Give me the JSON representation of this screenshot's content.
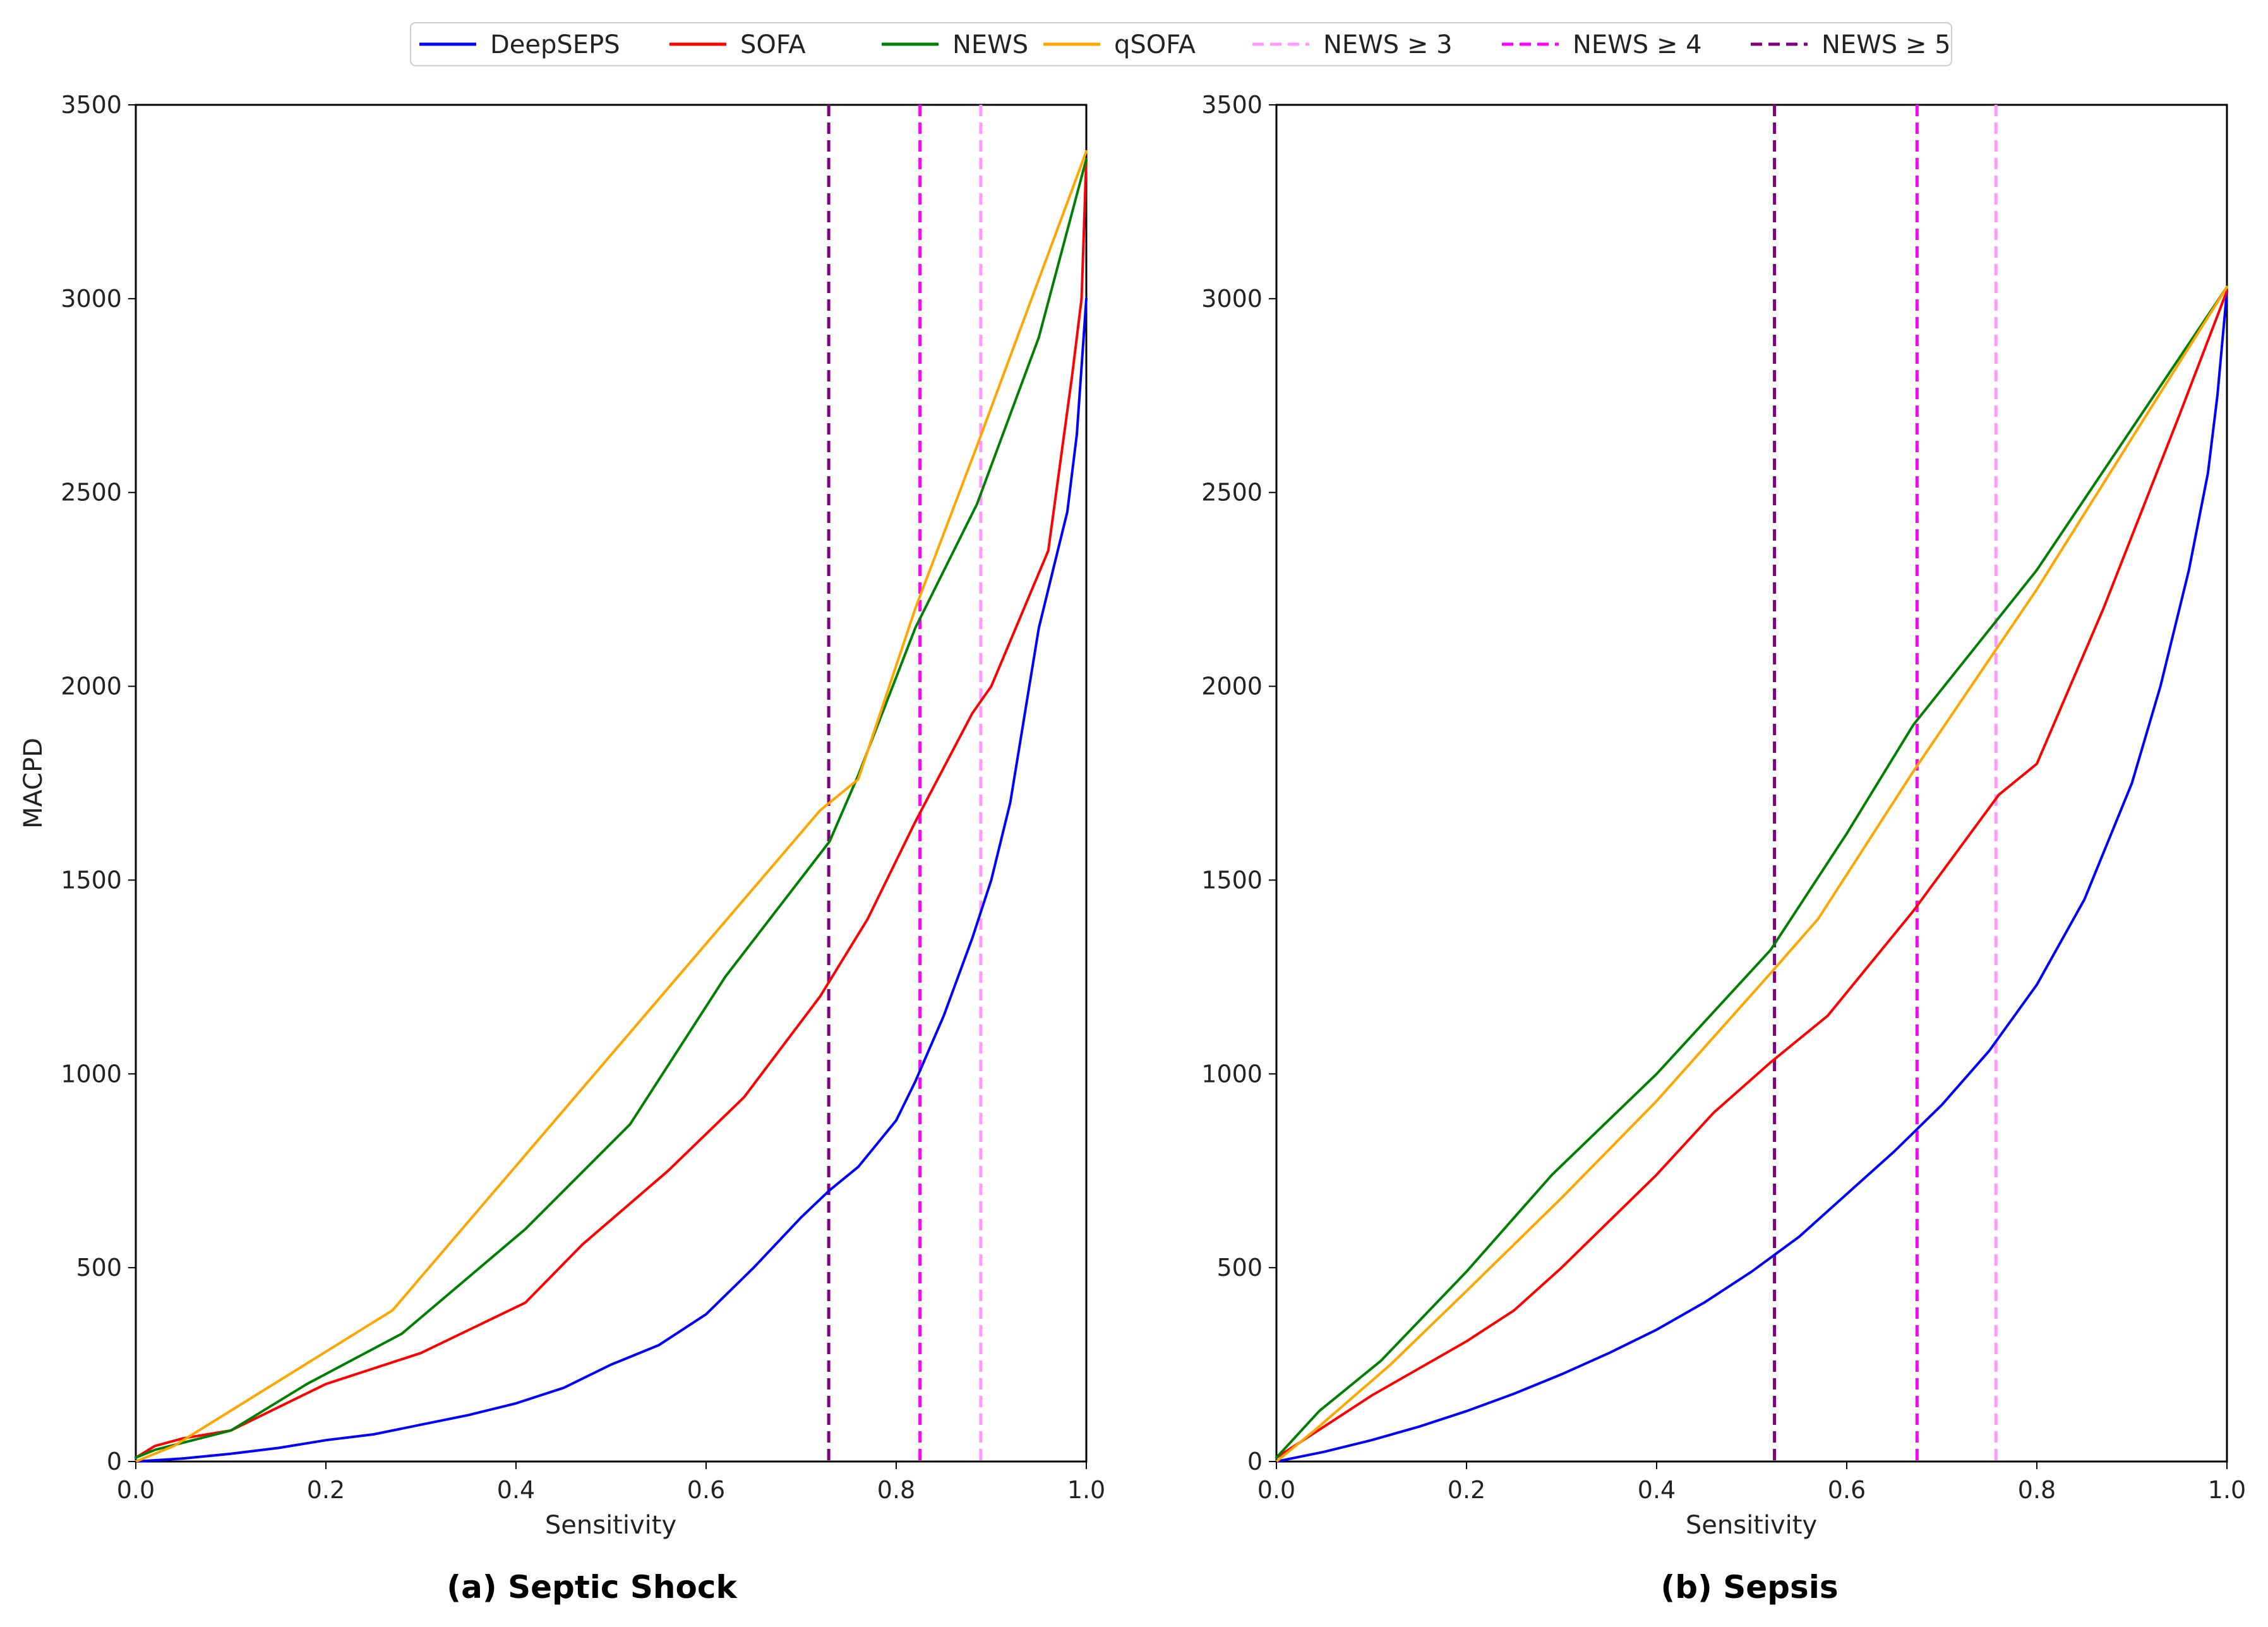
{
  "legend": [
    {
      "name": "DeepSEPS",
      "color": "#0000ff",
      "dash": "solid"
    },
    {
      "name": "SOFA",
      "color": "#ff0000",
      "dash": "solid"
    },
    {
      "name": "NEWS",
      "color": "#008000",
      "dash": "solid"
    },
    {
      "name": "qSOFA",
      "color": "#ffa500",
      "dash": "solid"
    },
    {
      "name": "NEWS ≥ 3",
      "color": "#ff99ff",
      "dash": "dashed"
    },
    {
      "name": "NEWS ≥ 4",
      "color": "#ff00ff",
      "dash": "dashed"
    },
    {
      "name": "NEWS ≥ 5",
      "color": "#800080",
      "dash": "dashed"
    }
  ],
  "chart_data": [
    {
      "type": "line",
      "caption": "(a) Septic Shock",
      "xlabel": "Sensitivity",
      "ylabel": "MACPD",
      "xlim": [
        0.0,
        1.0
      ],
      "ylim": [
        0,
        3500
      ],
      "xticks": [
        "0.0",
        "0.2",
        "0.4",
        "0.6",
        "0.8",
        "1.0"
      ],
      "yticks": [
        "0",
        "500",
        "1000",
        "1500",
        "2000",
        "2500",
        "3000",
        "3500"
      ],
      "series": [
        {
          "name": "DeepSEPS",
          "color": "#0000ff",
          "x": [
            0.0,
            0.05,
            0.1,
            0.15,
            0.2,
            0.25,
            0.3,
            0.35,
            0.4,
            0.45,
            0.5,
            0.55,
            0.6,
            0.65,
            0.7,
            0.73,
            0.76,
            0.8,
            0.82,
            0.85,
            0.88,
            0.9,
            0.92,
            0.94,
            0.95,
            0.96,
            0.97,
            0.98,
            0.99,
            1.0
          ],
          "y": [
            0,
            8,
            20,
            35,
            55,
            70,
            95,
            120,
            150,
            190,
            250,
            300,
            380,
            500,
            630,
            700,
            760,
            880,
            980,
            1150,
            1350,
            1500,
            1700,
            2000,
            2150,
            2250,
            2350,
            2450,
            2650,
            3000
          ]
        },
        {
          "name": "SOFA",
          "color": "#ff0000",
          "x": [
            0.0,
            0.02,
            0.05,
            0.1,
            0.15,
            0.2,
            0.3,
            0.41,
            0.47,
            0.56,
            0.64,
            0.72,
            0.77,
            0.82,
            0.88,
            0.9,
            0.96,
            0.985,
            0.995,
            1.0
          ],
          "y": [
            10,
            40,
            60,
            80,
            140,
            200,
            280,
            410,
            560,
            750,
            940,
            1200,
            1400,
            1650,
            1930,
            2000,
            2350,
            2800,
            3000,
            3360
          ]
        },
        {
          "name": "NEWS",
          "color": "#008000",
          "x": [
            0.0,
            0.02,
            0.1,
            0.18,
            0.28,
            0.41,
            0.52,
            0.62,
            0.73,
            0.76,
            0.82,
            0.885,
            0.95,
            1.0
          ],
          "y": [
            10,
            30,
            80,
            200,
            330,
            600,
            870,
            1250,
            1600,
            1770,
            2150,
            2470,
            2900,
            3360
          ]
        },
        {
          "name": "qSOFA",
          "color": "#ffa500",
          "x": [
            0.0,
            0.04,
            0.27,
            0.72,
            0.76,
            0.82,
            0.885,
            1.0
          ],
          "y": [
            0,
            40,
            390,
            1680,
            1760,
            2200,
            2620,
            3380
          ]
        }
      ],
      "thresholds": [
        {
          "name": "NEWS ≥ 3",
          "x": 0.889,
          "color": "#ff99ff"
        },
        {
          "name": "NEWS ≥ 4",
          "x": 0.825,
          "color": "#ff00ff"
        },
        {
          "name": "NEWS ≥ 5",
          "x": 0.729,
          "color": "#800080"
        }
      ]
    },
    {
      "type": "line",
      "caption": "(b) Sepsis",
      "xlabel": "Sensitivity",
      "ylabel": "",
      "xlim": [
        0.0,
        1.0
      ],
      "ylim": [
        0,
        3500
      ],
      "xticks": [
        "0.0",
        "0.2",
        "0.4",
        "0.6",
        "0.8",
        "1.0"
      ],
      "yticks": [
        "0",
        "500",
        "1000",
        "1500",
        "2000",
        "2500",
        "3000",
        "3500"
      ],
      "series": [
        {
          "name": "DeepSEPS",
          "color": "#0000ff",
          "x": [
            0.0,
            0.05,
            0.1,
            0.15,
            0.2,
            0.25,
            0.3,
            0.35,
            0.4,
            0.45,
            0.5,
            0.55,
            0.6,
            0.65,
            0.7,
            0.75,
            0.8,
            0.85,
            0.9,
            0.93,
            0.96,
            0.98,
            0.99,
            1.0
          ],
          "y": [
            0,
            25,
            55,
            90,
            130,
            175,
            225,
            280,
            340,
            410,
            490,
            580,
            690,
            800,
            920,
            1060,
            1230,
            1450,
            1750,
            2000,
            2300,
            2550,
            2750,
            3020
          ]
        },
        {
          "name": "SOFA",
          "color": "#ff0000",
          "x": [
            0.0,
            0.05,
            0.1,
            0.15,
            0.2,
            0.25,
            0.3,
            0.4,
            0.46,
            0.52,
            0.58,
            0.67,
            0.76,
            0.8,
            0.87,
            0.95,
            1.0
          ],
          "y": [
            10,
            90,
            170,
            240,
            310,
            390,
            500,
            740,
            900,
            1030,
            1150,
            1420,
            1720,
            1800,
            2200,
            2700,
            3020
          ]
        },
        {
          "name": "NEWS",
          "color": "#008000",
          "x": [
            0.0,
            0.045,
            0.11,
            0.2,
            0.29,
            0.4,
            0.52,
            0.6,
            0.67,
            0.8,
            1.0
          ],
          "y": [
            10,
            130,
            260,
            490,
            740,
            1000,
            1320,
            1620,
            1900,
            2300,
            3030
          ]
        },
        {
          "name": "qSOFA",
          "color": "#ffa500",
          "x": [
            0.0,
            0.04,
            0.12,
            0.2,
            0.3,
            0.4,
            0.52,
            0.57,
            0.67,
            0.8,
            1.0
          ],
          "y": [
            0,
            80,
            250,
            440,
            680,
            930,
            1260,
            1400,
            1780,
            2250,
            3030
          ]
        }
      ],
      "thresholds": [
        {
          "name": "NEWS ≥ 3",
          "x": 0.757,
          "color": "#ff99ff"
        },
        {
          "name": "NEWS ≥ 4",
          "x": 0.674,
          "color": "#ff00ff"
        },
        {
          "name": "NEWS ≥ 5",
          "x": 0.524,
          "color": "#800080"
        }
      ]
    }
  ]
}
